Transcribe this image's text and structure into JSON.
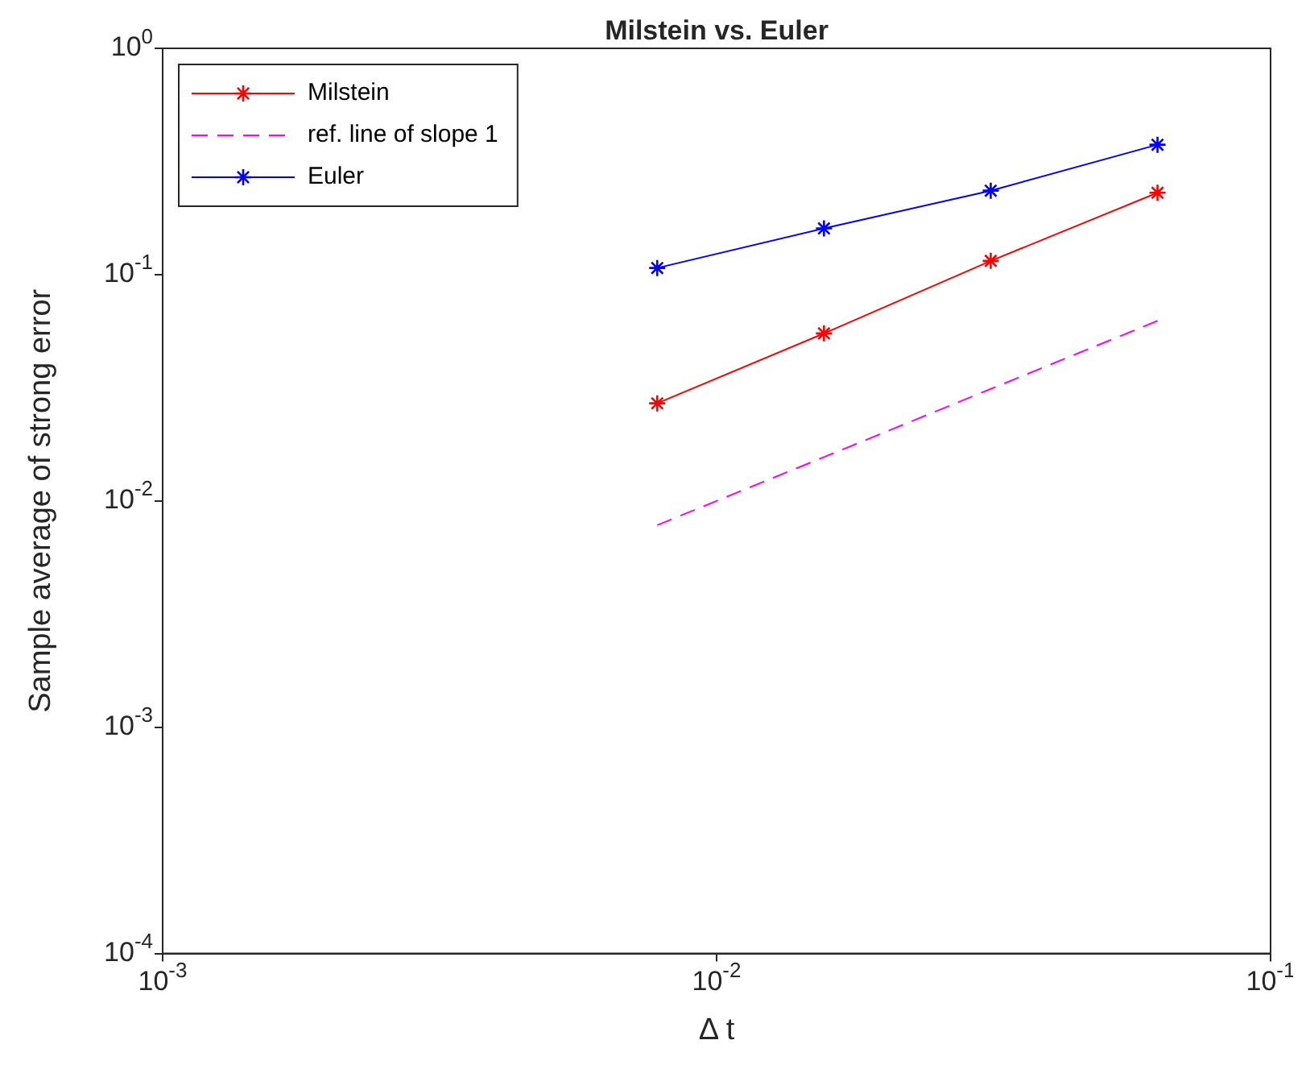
{
  "chart_data": {
    "type": "line",
    "title": "Milstein vs. Euler",
    "xlabel": "Δ t",
    "ylabel": "Sample average of strong error",
    "x": [
      0.0078125,
      0.015625,
      0.03125,
      0.0625
    ],
    "series": [
      {
        "name": "Milstein",
        "color": "#ff0000",
        "values": [
          0.027,
          0.055,
          0.115,
          0.23
        ],
        "marker": "cross",
        "line_style": "solid"
      },
      {
        "name": "ref. line of slope 1",
        "color": "#ff00ff",
        "values": [
          0.0078125,
          0.015625,
          0.03125,
          0.0625
        ],
        "marker": "none",
        "line_style": "dashed"
      },
      {
        "name": "Euler",
        "color": "#0000ff",
        "values": [
          0.107,
          0.16,
          0.235,
          0.375
        ],
        "marker": "cross",
        "line_style": "solid"
      }
    ],
    "log": "xy",
    "xlim": [
      0.001,
      0.1
    ],
    "ylim": [
      0.0001,
      1
    ],
    "xticks": [
      {
        "value": 0.001,
        "label": "10$^{-3}$"
      },
      {
        "value": 0.01,
        "label": "10$^{-2}$"
      },
      {
        "value": 0.1,
        "label": "10$^{-1}$"
      }
    ],
    "yticks": [
      {
        "value": 0.0001,
        "label": "10$^{-4}$"
      },
      {
        "value": 0.001,
        "label": "10$^{-3}$"
      },
      {
        "value": 0.01,
        "label": "10$^{-2}$"
      },
      {
        "value": 0.1,
        "label": "10$^{-1}$"
      },
      {
        "value": 1,
        "label": "10$^{0}$"
      }
    ],
    "grid": false,
    "legend": "top left"
  }
}
